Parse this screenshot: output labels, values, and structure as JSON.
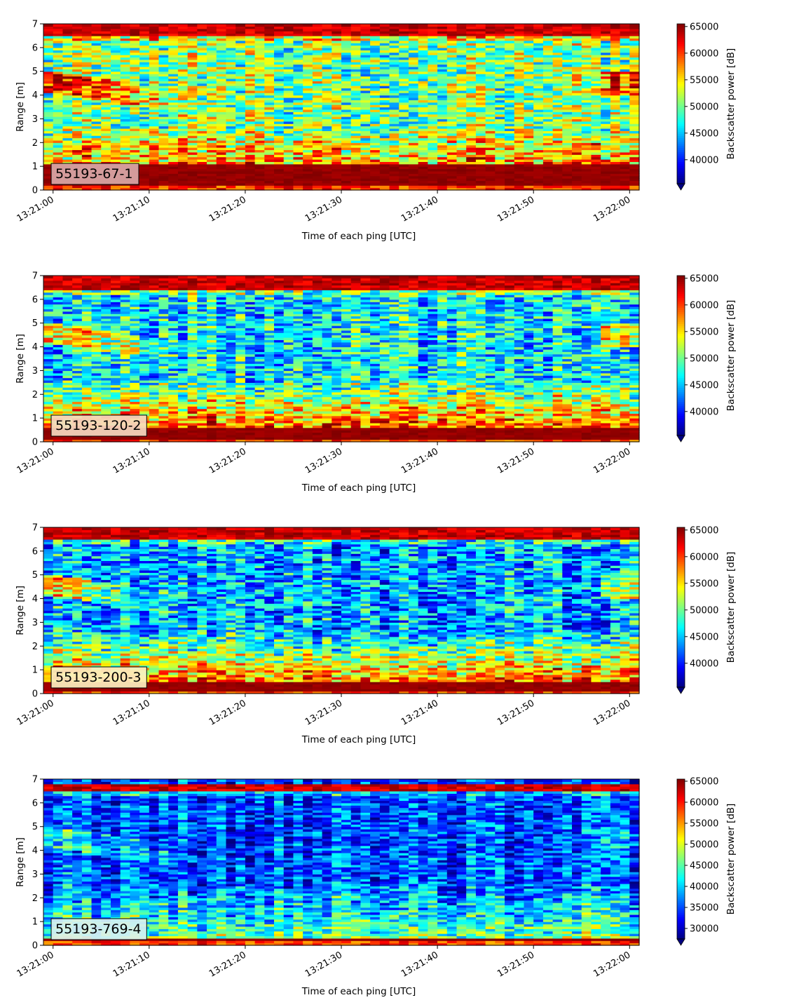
{
  "chart_data": [
    {
      "type": "heatmap",
      "panel_label": "55193-67-1",
      "label_box_color": "#d9a8a8",
      "xlabel": "Time of each ping [UTC]",
      "ylabel": "Range [m]",
      "xticks": [
        "13:21:00",
        "13:21:10",
        "13:21:20",
        "13:21:30",
        "13:21:40",
        "13:21:50",
        "13:22:00"
      ],
      "yticks": [
        "0",
        "1",
        "2",
        "3",
        "4",
        "5",
        "6",
        "7"
      ],
      "xlim_seconds": [
        -1,
        61
      ],
      "ylim": [
        0,
        7
      ],
      "colorbar": {
        "label": "Backscatter power [dB]",
        "min": 35500,
        "max": 65500,
        "ticks": [
          "40000",
          "45000",
          "50000",
          "55000",
          "60000",
          "65000"
        ],
        "extend": "min",
        "colormap": "jet"
      },
      "profile": {
        "bottom_band": [
          0.25,
          1.1
        ],
        "top_band": [
          6.5,
          7.0
        ],
        "mid_level": 0.5,
        "low_layer_level": 0.72,
        "noise": 0.22,
        "upper_blob_strength": 0.35,
        "seed": 11
      }
    },
    {
      "type": "heatmap",
      "panel_label": "55193-120-2",
      "label_box_color": "#f5d9c0",
      "xlabel": "Time of each ping [UTC]",
      "ylabel": "Range [m]",
      "xticks": [
        "13:21:00",
        "13:21:10",
        "13:21:20",
        "13:21:30",
        "13:21:40",
        "13:21:50",
        "13:22:00"
      ],
      "yticks": [
        "0",
        "1",
        "2",
        "3",
        "4",
        "5",
        "6",
        "7"
      ],
      "xlim_seconds": [
        -1,
        61
      ],
      "ylim": [
        0,
        7
      ],
      "colorbar": {
        "label": "Backscatter power [dB]",
        "min": 35500,
        "max": 65500,
        "ticks": [
          "40000",
          "45000",
          "50000",
          "55000",
          "60000",
          "65000"
        ],
        "extend": "min",
        "colormap": "jet"
      },
      "profile": {
        "bottom_band": [
          0.1,
          0.55
        ],
        "top_band": [
          6.4,
          7.0
        ],
        "mid_level": 0.37,
        "low_layer_level": 0.68,
        "noise": 0.2,
        "upper_blob_strength": 0.3,
        "seed": 23
      }
    },
    {
      "type": "heatmap",
      "panel_label": "55193-200-3",
      "label_box_color": "#fdf0c0",
      "xlabel": "Time of each ping [UTC]",
      "ylabel": "Range [m]",
      "xticks": [
        "13:21:00",
        "13:21:10",
        "13:21:20",
        "13:21:30",
        "13:21:40",
        "13:21:50",
        "13:22:00"
      ],
      "yticks": [
        "0",
        "1",
        "2",
        "3",
        "4",
        "5",
        "6",
        "7"
      ],
      "xlim_seconds": [
        -1,
        61
      ],
      "ylim": [
        0,
        7
      ],
      "colorbar": {
        "label": "Backscatter power [dB]",
        "min": 35500,
        "max": 65500,
        "ticks": [
          "40000",
          "45000",
          "50000",
          "55000",
          "60000",
          "65000"
        ],
        "extend": "min",
        "colormap": "jet"
      },
      "profile": {
        "bottom_band": [
          0.15,
          0.45
        ],
        "top_band": [
          6.5,
          7.0
        ],
        "mid_level": 0.3,
        "low_layer_level": 0.64,
        "noise": 0.2,
        "upper_blob_strength": 0.28,
        "seed": 37
      }
    },
    {
      "type": "heatmap",
      "panel_label": "55193-769-4",
      "label_box_color": "#d8f0f0",
      "xlabel": "Time of each ping [UTC]",
      "ylabel": "Range [m]",
      "xticks": [
        "13:21:00",
        "13:21:10",
        "13:21:20",
        "13:21:30",
        "13:21:40",
        "13:21:50",
        "13:22:00"
      ],
      "yticks": [
        "0",
        "1",
        "2",
        "3",
        "4",
        "5",
        "6",
        "7"
      ],
      "xlim_seconds": [
        -1,
        61
      ],
      "ylim": [
        0,
        7
      ],
      "colorbar": {
        "label": "Backscatter power [dB]",
        "min": 27500,
        "max": 65500,
        "ticks": [
          "30000",
          "35000",
          "40000",
          "45000",
          "50000",
          "55000",
          "60000",
          "65000"
        ],
        "extend": "min",
        "colormap": "jet"
      },
      "profile": {
        "bottom_band": [
          0.18,
          0.35
        ],
        "top_band": [
          6.5,
          6.8
        ],
        "mid_level": 0.2,
        "low_layer_level": 0.38,
        "noise": 0.16,
        "upper_blob_strength": 0.12,
        "seed": 53
      }
    }
  ]
}
